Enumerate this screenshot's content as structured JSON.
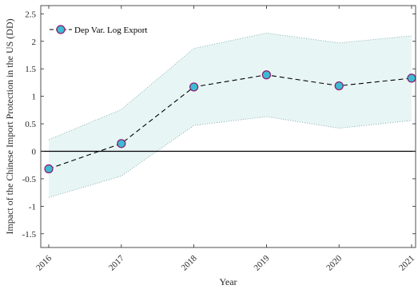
{
  "chart_data": {
    "type": "line",
    "title": "",
    "xlabel": "Year",
    "ylabel": "Impact of the Chinese Import Protection in the US (DD)",
    "x": [
      "2016",
      "2017",
      "2018",
      "2019",
      "2020",
      "2021"
    ],
    "series": [
      {
        "name": "Dep Var. Log Export",
        "values": [
          -0.32,
          0.14,
          1.17,
          1.39,
          1.19,
          1.33
        ],
        "lower": [
          -0.84,
          -0.45,
          0.47,
          0.63,
          0.42,
          0.56
        ],
        "upper": [
          0.21,
          0.76,
          1.87,
          2.15,
          1.97,
          2.1
        ]
      }
    ],
    "yticks": [
      "-1.5",
      "-1",
      "-0.5",
      "0",
      "0.5",
      "1",
      "1.5",
      "2",
      "2.5"
    ],
    "ylim": [
      -1.75,
      2.65
    ],
    "legend_position": "top-left",
    "grid": false,
    "zero_line": true,
    "colors": {
      "marker_fill": "#3dbbd3",
      "marker_edge": "#8b1a6b",
      "line": "#000000",
      "band_fill": "#e8f5f5",
      "band_edge": "#6f9f9f",
      "axis": "#262626"
    }
  }
}
